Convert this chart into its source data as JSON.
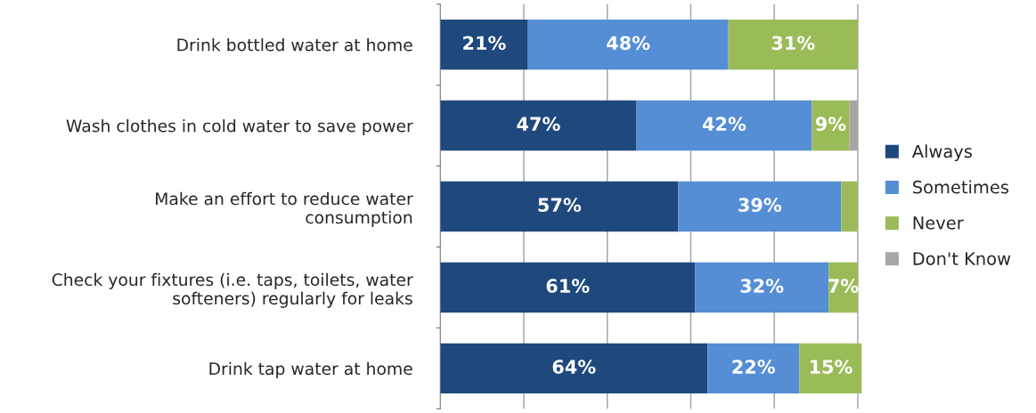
{
  "chart_data": {
    "type": "bar",
    "orientation": "horizontal",
    "stacked": true,
    "categories": [
      "Drink bottled water at home",
      "Wash clothes in cold water to save power",
      "Make an effort to reduce water\nconsumption",
      "Check your fixtures (i.e. taps, toilets, water\nsofteners) regularly for leaks",
      "Drink tap water at home"
    ],
    "series": [
      {
        "name": "Always",
        "color": "#1f497d",
        "values": [
          21,
          47,
          57,
          61,
          64
        ],
        "value_labels": [
          "21%",
          "47%",
          "57%",
          "61%",
          "64%"
        ]
      },
      {
        "name": "Sometimes",
        "color": "#558ed5",
        "values": [
          48,
          42,
          39,
          32,
          22
        ],
        "value_labels": [
          "48%",
          "42%",
          "39%",
          "32%",
          "22%"
        ]
      },
      {
        "name": "Never",
        "color": "#9bbb59",
        "values": [
          31,
          9,
          4,
          7,
          15
        ],
        "value_labels": [
          "31%",
          "9%",
          null,
          "7%",
          "15%"
        ]
      },
      {
        "name": "Don't Know",
        "color": "#a6a6a6",
        "values": [
          0,
          2,
          0,
          0,
          0
        ],
        "value_labels": [
          null,
          null,
          null,
          null,
          null
        ]
      }
    ],
    "xlim": [
      0,
      101
    ],
    "xticks": [
      {
        "value": 0,
        "label": null
      },
      {
        "value": 20,
        "label": null
      },
      {
        "value": 40,
        "label": null
      },
      {
        "value": 60,
        "label": null
      },
      {
        "value": 80,
        "label": null
      },
      {
        "value": 100,
        "label": null
      }
    ],
    "grid": "x",
    "legend": "right",
    "tick_labels": "y"
  }
}
